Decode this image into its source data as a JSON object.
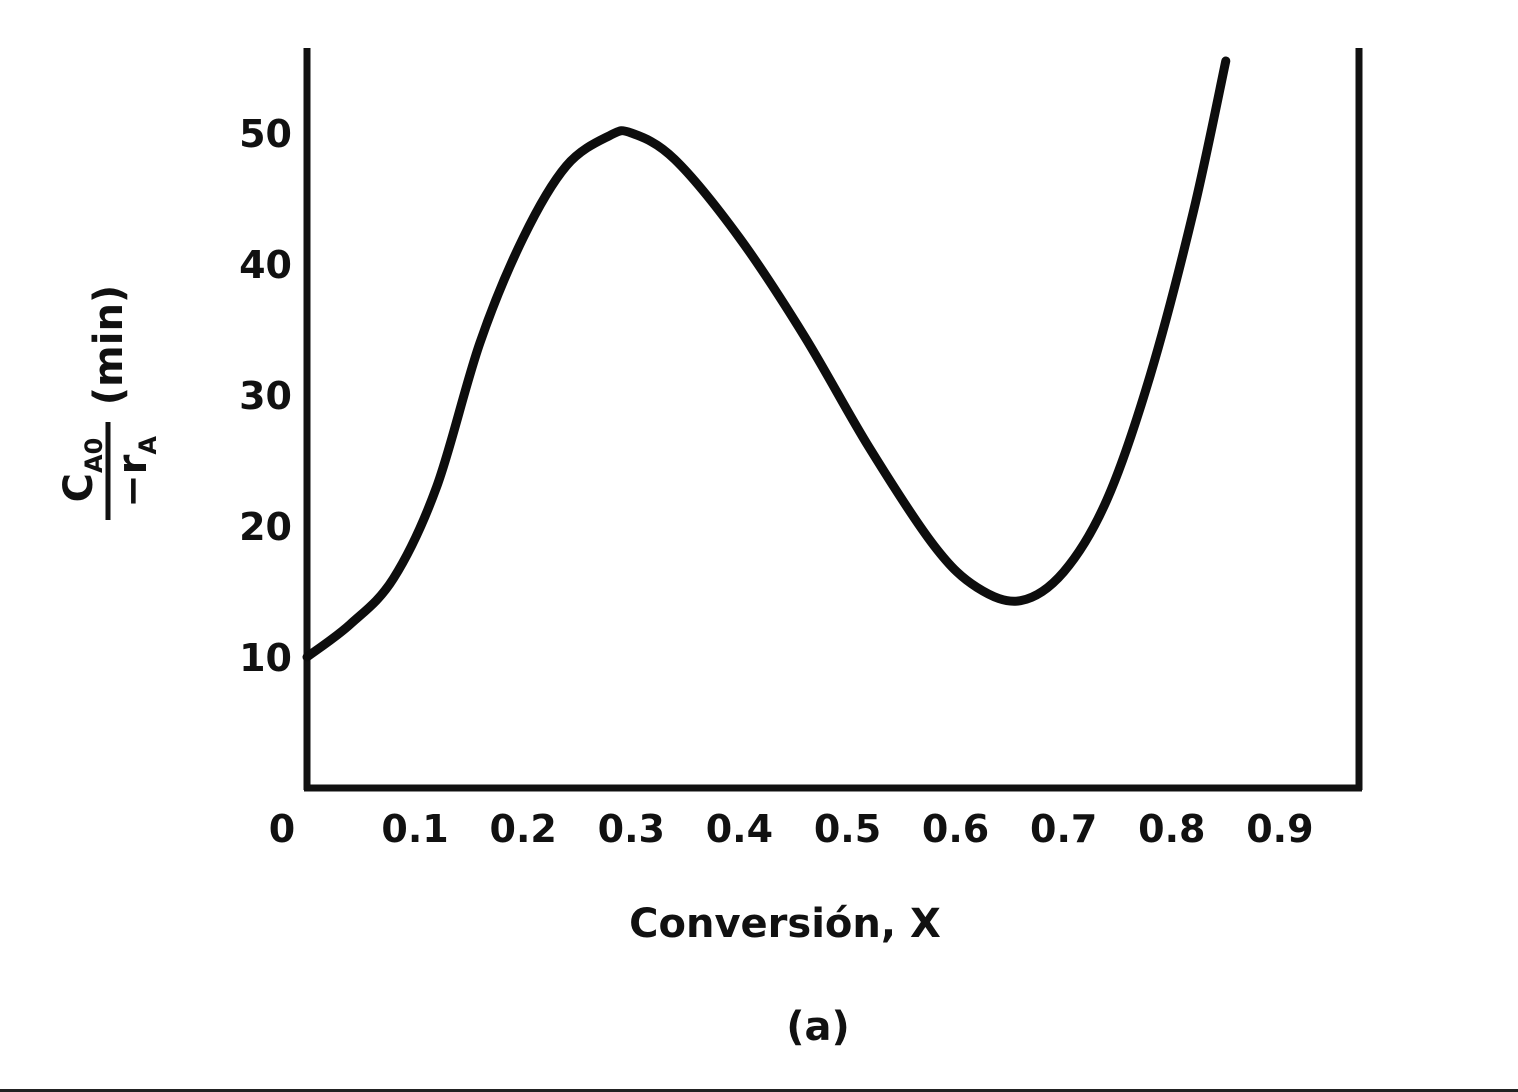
{
  "chart_data": {
    "type": "line",
    "caption": "(a)",
    "xlabel": "Conversión, X",
    "ylabel": {
      "numerator": "C",
      "numerator_sub": "A0",
      "denominator": "−r",
      "denominator_sub": "A",
      "unit": "(min)"
    },
    "xlim": [
      0,
      1.0
    ],
    "ylim": [
      0,
      56
    ],
    "xticks": [
      "0",
      "0.1",
      "0.2",
      "0.3",
      "0.4",
      "0.5",
      "0.6",
      "0.7",
      "0.8",
      "0.9"
    ],
    "xtick_values": [
      0,
      0.1,
      0.2,
      0.3,
      0.4,
      0.5,
      0.6,
      0.7,
      0.8,
      0.9
    ],
    "yticks": [
      "10",
      "20",
      "30",
      "40",
      "50"
    ],
    "ytick_values": [
      10,
      20,
      30,
      40,
      50
    ],
    "grid": false,
    "series": [
      {
        "x": [
          0,
          0.04,
          0.08,
          0.12,
          0.16,
          0.2,
          0.24,
          0.28,
          0.3,
          0.34,
          0.4,
          0.46,
          0.52,
          0.58,
          0.62,
          0.66,
          0.7,
          0.74,
          0.78,
          0.82,
          0.85
        ],
        "y": [
          10,
          12.5,
          16,
          23,
          34,
          42,
          47.5,
          49.8,
          50,
          48,
          42,
          34.5,
          26,
          18.5,
          15.3,
          14.3,
          16.5,
          22,
          31.5,
          44,
          55.5
        ]
      }
    ]
  }
}
